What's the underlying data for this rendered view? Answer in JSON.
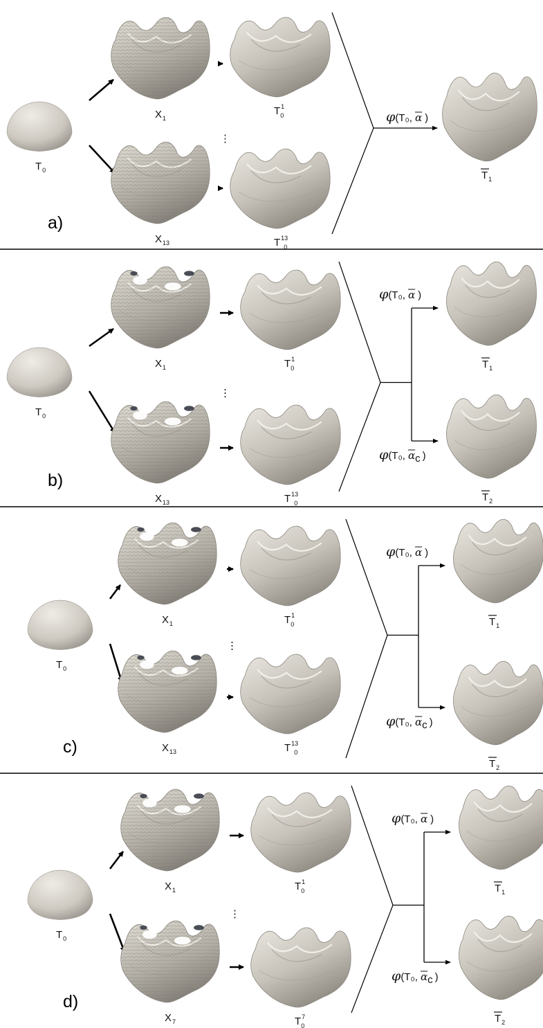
{
  "panels": [
    {
      "label": "a)",
      "template": {
        "base": "T",
        "sub": "0"
      },
      "scans": [
        {
          "base": "X",
          "sub": "1"
        },
        {
          "base": "X",
          "sub": "13"
        }
      ],
      "deformed": [
        {
          "base": "T",
          "sub": "0",
          "sup": "1"
        },
        {
          "base": "T",
          "sub": "0",
          "sup": "13"
        }
      ],
      "ellipsis": "⋮",
      "outputs": [
        {
          "phi": "φ",
          "args": "(T₀, ",
          "alpha": "α",
          "alpha_sub": "",
          "close": ")",
          "result": {
            "base": "T",
            "sub": "1"
          }
        }
      ]
    },
    {
      "label": "b)",
      "template": {
        "base": "T",
        "sub": "0"
      },
      "scans": [
        {
          "base": "X",
          "sub": "1"
        },
        {
          "base": "X",
          "sub": "13"
        }
      ],
      "deformed": [
        {
          "base": "T",
          "sub": "0",
          "sup": "1"
        },
        {
          "base": "T",
          "sub": "0",
          "sup": "13"
        }
      ],
      "ellipsis": "⋮",
      "outputs": [
        {
          "phi": "φ",
          "args": "(T₀, ",
          "alpha": "α",
          "alpha_sub": "",
          "close": ")",
          "result": {
            "base": "T",
            "sub": "1"
          }
        },
        {
          "phi": "φ",
          "args": "(T₀, ",
          "alpha": "α",
          "alpha_sub": "c",
          "close": ")",
          "result": {
            "base": "T",
            "sub": "2"
          }
        }
      ]
    },
    {
      "label": "c)",
      "template": {
        "base": "T",
        "sub": "0"
      },
      "scans": [
        {
          "base": "X",
          "sub": "1"
        },
        {
          "base": "X",
          "sub": "13"
        }
      ],
      "deformed": [
        {
          "base": "T",
          "sub": "0",
          "sup": "1"
        },
        {
          "base": "T",
          "sub": "0",
          "sup": "13"
        }
      ],
      "ellipsis": "⋮",
      "outputs": [
        {
          "phi": "φ",
          "args": "(T₀, ",
          "alpha": "α",
          "alpha_sub": "",
          "close": ")",
          "result": {
            "base": "T",
            "sub": "1"
          }
        },
        {
          "phi": "φ",
          "args": "(T₀, ",
          "alpha": "α",
          "alpha_sub": "c",
          "close": ")",
          "result": {
            "base": "T",
            "sub": "2"
          }
        }
      ]
    },
    {
      "label": "d)",
      "template": {
        "base": "T",
        "sub": "0"
      },
      "scans": [
        {
          "base": "X",
          "sub": "1"
        },
        {
          "base": "X",
          "sub": "7"
        }
      ],
      "deformed": [
        {
          "base": "T",
          "sub": "0",
          "sup": "1"
        },
        {
          "base": "T",
          "sub": "0",
          "sup": "7"
        }
      ],
      "ellipsis": "⋮",
      "outputs": [
        {
          "phi": "φ",
          "args": "(T₀, ",
          "alpha": "α",
          "alpha_sub": "",
          "close": ")",
          "result": {
            "base": "T",
            "sub": "1"
          }
        },
        {
          "phi": "φ",
          "args": "(T₀, ",
          "alpha": "α",
          "alpha_sub": "c",
          "close": ")",
          "result": {
            "base": "T",
            "sub": "2"
          }
        }
      ]
    }
  ],
  "colors": {
    "surface_light": "#e4e1da",
    "surface_mid": "#bdb9b0",
    "surface_dark": "#8e8a82",
    "hole_dark": "#4a4d55",
    "line": "#000000"
  }
}
